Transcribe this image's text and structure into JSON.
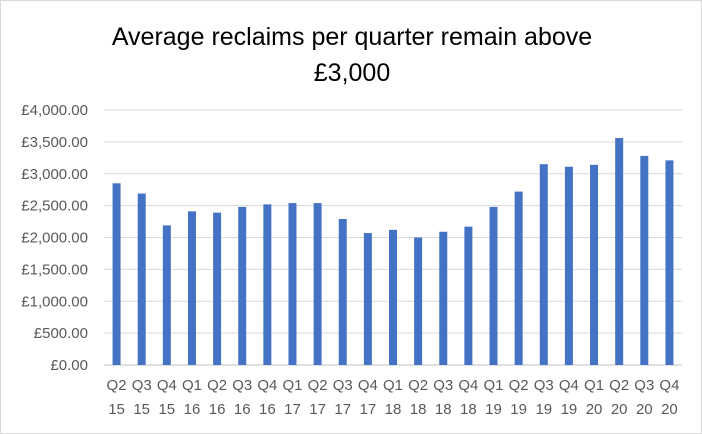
{
  "chart_data": {
    "type": "bar",
    "title_line1": "Average reclaims per quarter remain above",
    "title_line2": "£3,000",
    "xlabel": "",
    "ylabel": "",
    "ylim": [
      0,
      4000
    ],
    "y_ticks": [
      "£0.00",
      "£500.00",
      "£1,000.00",
      "£1,500.00",
      "£2,000.00",
      "£2,500.00",
      "£3,000.00",
      "£3,500.00",
      "£4,000.00"
    ],
    "categories": [
      {
        "q": "Q2",
        "y": "15"
      },
      {
        "q": "Q3",
        "y": "15"
      },
      {
        "q": "Q4",
        "y": "15"
      },
      {
        "q": "Q1",
        "y": "16"
      },
      {
        "q": "Q2",
        "y": "16"
      },
      {
        "q": "Q3",
        "y": "16"
      },
      {
        "q": "Q4",
        "y": "16"
      },
      {
        "q": "Q1",
        "y": "17"
      },
      {
        "q": "Q2",
        "y": "17"
      },
      {
        "q": "Q3",
        "y": "17"
      },
      {
        "q": "Q4",
        "y": "17"
      },
      {
        "q": "Q1",
        "y": "18"
      },
      {
        "q": "Q2",
        "y": "18"
      },
      {
        "q": "Q3",
        "y": "18"
      },
      {
        "q": "Q4",
        "y": "18"
      },
      {
        "q": "Q1",
        "y": "19"
      },
      {
        "q": "Q2",
        "y": "19"
      },
      {
        "q": "Q3",
        "y": "19"
      },
      {
        "q": "Q4",
        "y": "19"
      },
      {
        "q": "Q1",
        "y": "20"
      },
      {
        "q": "Q2",
        "y": "20"
      },
      {
        "q": "Q3",
        "y": "20"
      },
      {
        "q": "Q4",
        "y": "20"
      }
    ],
    "values": [
      2850,
      2690,
      2190,
      2410,
      2390,
      2480,
      2520,
      2540,
      2540,
      2290,
      2070,
      2120,
      2000,
      2090,
      2170,
      2480,
      2720,
      3150,
      3110,
      3140,
      3560,
      3280,
      3210
    ],
    "bar_color": "#4472c4",
    "grid": true,
    "legend": "none"
  }
}
